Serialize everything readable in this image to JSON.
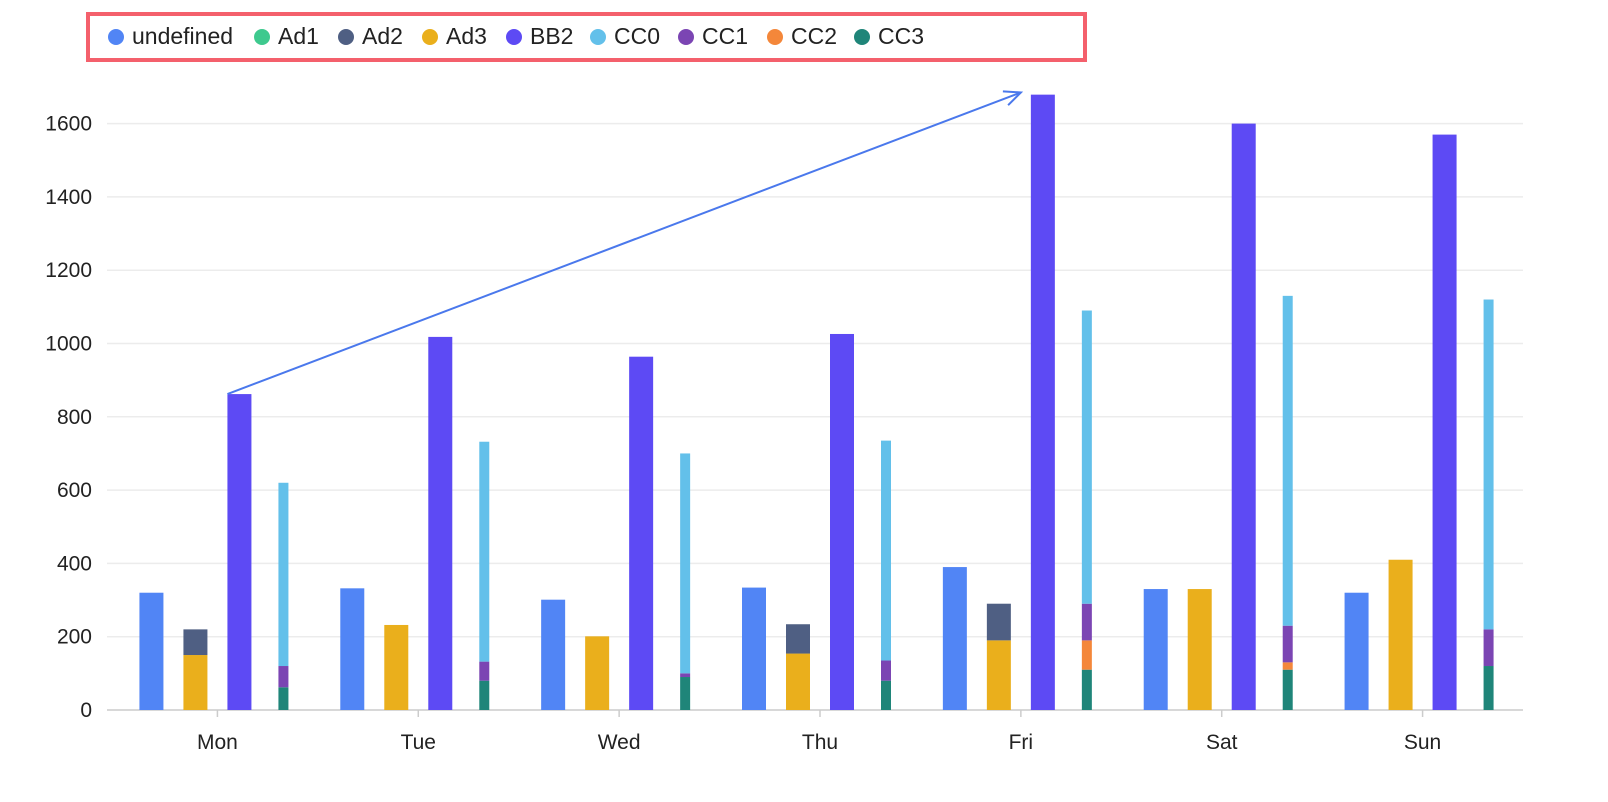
{
  "chart_data": {
    "type": "bar",
    "categories": [
      "Mon",
      "Tue",
      "Wed",
      "Thu",
      "Fri",
      "Sat",
      "Sun"
    ],
    "ylim": [
      0,
      1700
    ],
    "yticks": [
      0,
      200,
      400,
      600,
      800,
      1000,
      1200,
      1400,
      1600
    ],
    "grid": true,
    "legend_position": "top-left",
    "legend": [
      "undefined",
      "Ad1",
      "Ad2",
      "Ad3",
      "BB2",
      "CC0",
      "CC1",
      "CC2",
      "CC3"
    ],
    "colors": {
      "undefined": "#5185f5",
      "Ad1": "#3ec98e",
      "Ad2": "#4f5f83",
      "Ad3": "#eaaf1c",
      "BB2": "#5d4af4",
      "CC0": "#63c0ea",
      "CC1": "#7b45b3",
      "CC2": "#f4873a",
      "CC3": "#1f8579",
      "legend_border": "#f4606c",
      "arrow": "#4a78ec",
      "grid": "#ececec",
      "axis": "#cccccc"
    },
    "series": [
      {
        "name": "undefined",
        "stack": "a",
        "values": [
          320,
          332,
          301,
          334,
          390,
          330,
          320
        ]
      },
      {
        "name": "Ad1",
        "stack": "ad",
        "values": [
          0,
          0,
          0,
          0,
          0,
          0,
          0
        ]
      },
      {
        "name": "Ad3",
        "stack": "ad",
        "values": [
          150,
          232,
          201,
          154,
          190,
          330,
          410
        ]
      },
      {
        "name": "Ad2",
        "stack": "ad",
        "values": [
          70,
          0,
          0,
          80,
          100,
          0,
          0
        ]
      },
      {
        "name": "BB2",
        "stack": "b",
        "values": [
          862,
          1018,
          964,
          1026,
          1679,
          1600,
          1570
        ]
      },
      {
        "name": "CC3",
        "stack": "c",
        "values": [
          62,
          80,
          90,
          80,
          110,
          110,
          120
        ]
      },
      {
        "name": "CC2",
        "stack": "c",
        "values": [
          0,
          0,
          0,
          0,
          80,
          20,
          0
        ]
      },
      {
        "name": "CC1",
        "stack": "c",
        "values": [
          58,
          52,
          10,
          55,
          100,
          100,
          100
        ]
      },
      {
        "name": "CC0",
        "stack": "c",
        "values": [
          500,
          600,
          600,
          600,
          800,
          900,
          900
        ]
      }
    ],
    "annotation": {
      "type": "arrow",
      "from": {
        "category": "Mon",
        "stack": "b",
        "value": 862
      },
      "to": {
        "category": "Fri",
        "stack": "b",
        "value": 1685
      }
    }
  }
}
